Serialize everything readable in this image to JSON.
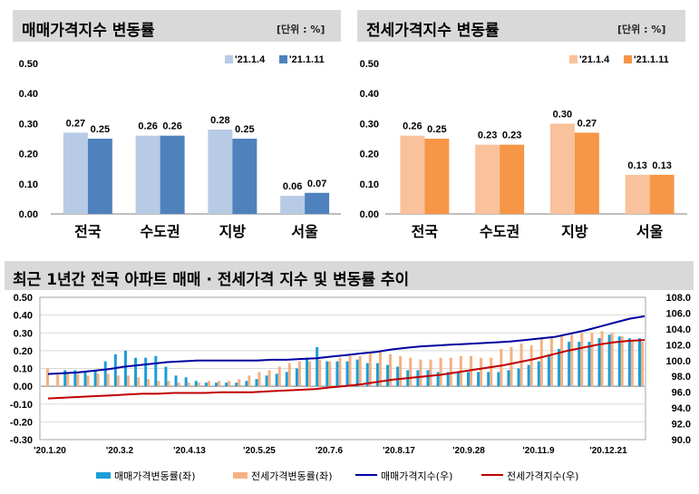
{
  "chart_data": [
    {
      "type": "bar",
      "title": "매매가격지수 변동률",
      "unit_label": "[단위 : %]",
      "categories": [
        "전국",
        "수도권",
        "지방",
        "서울"
      ],
      "series": [
        {
          "name": "'21.1.4",
          "values": [
            0.27,
            0.26,
            0.28,
            0.06
          ],
          "color": "#b7cbe5"
        },
        {
          "name": "'21.1.11",
          "values": [
            0.25,
            0.26,
            0.25,
            0.07
          ],
          "color": "#4f81bd"
        }
      ],
      "ylim": [
        0,
        0.5
      ],
      "yticks": [
        "0.00",
        "0.10",
        "0.20",
        "0.30",
        "0.40",
        "0.50"
      ],
      "legend": "top-right"
    },
    {
      "type": "bar",
      "title": "전세가격지수 변동률",
      "unit_label": "[단위 : %]",
      "categories": [
        "전국",
        "수도권",
        "지방",
        "서울"
      ],
      "series": [
        {
          "name": "'21.1.4",
          "values": [
            0.26,
            0.23,
            0.3,
            0.13
          ],
          "color": "#f9c29c"
        },
        {
          "name": "'21.1.11",
          "values": [
            0.25,
            0.23,
            0.27,
            0.13
          ],
          "color": "#f79646"
        }
      ],
      "ylim": [
        0,
        0.5
      ],
      "yticks": [
        "0.00",
        "0.10",
        "0.20",
        "0.30",
        "0.40",
        "0.50"
      ],
      "legend": "top-right"
    },
    {
      "type": "bar+line",
      "title": "최근 1년간 전국 아파트 매매 · 전세가격 지수 및 변동률 추이",
      "x_ticks": [
        "'20.1.20",
        "'20.3.2",
        "'20.4.13",
        "'20.5.25",
        "'20.7.6",
        "'20.8.17",
        "'20.9.28",
        "'20.11.9",
        "'20.12.21"
      ],
      "left_ylim": [
        -0.3,
        0.5
      ],
      "left_yticks": [
        "-0.30",
        "-0.20",
        "-0.10",
        "0.00",
        "0.10",
        "0.20",
        "0.30",
        "0.40",
        "0.50"
      ],
      "right_ylim": [
        90.0,
        108.0
      ],
      "right_yticks": [
        "90.0",
        "92.0",
        "94.0",
        "96.0",
        "98.0",
        "100.0",
        "102.0",
        "104.0",
        "106.0",
        "108.0"
      ],
      "series": [
        {
          "name": "매매가격변동률(좌)",
          "type": "bar",
          "axis": "left",
          "color": "#1a9ed8",
          "values": [
            0.09,
            0.09,
            0.08,
            0.09,
            0.14,
            0.18,
            0.2,
            0.16,
            0.16,
            0.17,
            0.11,
            0.06,
            0.05,
            0.03,
            0.02,
            0.02,
            0.02,
            0.02,
            0.03,
            0.04,
            0.06,
            0.07,
            0.08,
            0.1,
            0.16,
            0.22,
            0.14,
            0.14,
            0.14,
            0.15,
            0.13,
            0.13,
            0.12,
            0.11,
            0.09,
            0.09,
            0.09,
            0.08,
            0.08,
            0.08,
            0.08,
            0.08,
            0.08,
            0.08,
            0.09,
            0.1,
            0.12,
            0.14,
            0.18,
            0.21,
            0.25,
            0.25,
            0.25,
            0.27,
            0.29,
            0.28,
            0.27,
            0.27
          ]
        },
        {
          "name": "전세가격변동률(좌)",
          "type": "bar",
          "axis": "left",
          "color": "#f4b183",
          "values": [
            0.1,
            0.07,
            0.07,
            0.07,
            0.06,
            0.07,
            0.07,
            0.06,
            0.06,
            0.05,
            0.04,
            0.03,
            0.03,
            0.02,
            0.02,
            0.02,
            0.03,
            0.03,
            0.03,
            0.04,
            0.06,
            0.08,
            0.09,
            0.11,
            0.13,
            0.14,
            0.14,
            0.15,
            0.14,
            0.16,
            0.17,
            0.17,
            0.19,
            0.2,
            0.18,
            0.17,
            0.16,
            0.15,
            0.15,
            0.16,
            0.16,
            0.17,
            0.17,
            0.16,
            0.16,
            0.21,
            0.22,
            0.24,
            0.23,
            0.27,
            0.28,
            0.29,
            0.29,
            0.3,
            0.3,
            0.31,
            0.3,
            0.28,
            0.26,
            0.25
          ]
        },
        {
          "name": "매매가격지수(우)",
          "type": "line",
          "axis": "right",
          "color": "#0000a0",
          "values": [
            98.3,
            98.4,
            98.5,
            98.7,
            98.9,
            99.2,
            99.4,
            99.6,
            99.8,
            99.9,
            100.0,
            100.0,
            100.0,
            100.0,
            100.0,
            100.1,
            100.1,
            100.2,
            100.3,
            100.5,
            100.7,
            100.9,
            101.1,
            101.4,
            101.6,
            101.8,
            101.9,
            102.0,
            102.1,
            102.2,
            102.3,
            102.4,
            102.6,
            102.8,
            103.0,
            103.4,
            103.8,
            104.3,
            104.8,
            105.3,
            105.6
          ]
        },
        {
          "name": "전세가격지수(우)",
          "type": "line",
          "axis": "right",
          "color": "#c00000",
          "values": [
            95.2,
            95.3,
            95.4,
            95.5,
            95.6,
            95.7,
            95.8,
            95.8,
            95.9,
            95.9,
            95.9,
            96.0,
            96.0,
            96.0,
            96.1,
            96.2,
            96.3,
            96.4,
            96.6,
            96.8,
            97.0,
            97.3,
            97.6,
            97.8,
            98.0,
            98.2,
            98.5,
            98.8,
            99.1,
            99.4,
            99.8,
            100.2,
            100.7,
            101.2,
            101.6,
            102.0,
            102.3,
            102.5,
            102.6
          ]
        }
      ],
      "legend": "bottom"
    }
  ]
}
